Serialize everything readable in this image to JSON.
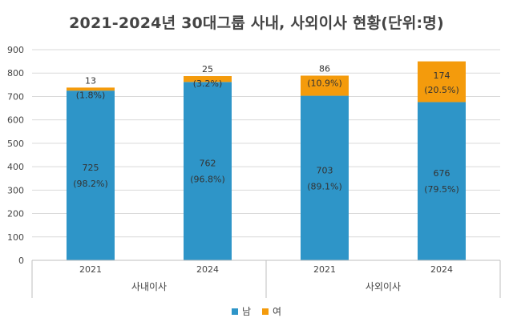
{
  "chart_data": {
    "type": "bar",
    "stacked": true,
    "title": "2021-2024년 30대그룹 사내, 사외이사 현황(단위:명)",
    "groups": [
      "사내이사",
      "사외이사"
    ],
    "categories": [
      "2021",
      "2024",
      "2021",
      "2024"
    ],
    "category_groups": [
      0,
      0,
      1,
      1
    ],
    "series": [
      {
        "name": "남",
        "color": "#2e95c8",
        "values": [
          725,
          762,
          703,
          676
        ],
        "pct_labels": [
          "(98.2%)",
          "(96.8%)",
          "(89.1%)",
          "(79.5%)"
        ]
      },
      {
        "name": "여",
        "color": "#f49b0c",
        "values": [
          13,
          25,
          86,
          174
        ],
        "pct_labels": [
          "(1.8%)",
          "(3.2%)",
          "(10.9%)",
          "(20.5%)"
        ]
      }
    ],
    "ylim": [
      0,
      900
    ],
    "yticks": [
      0,
      100,
      200,
      300,
      400,
      500,
      600,
      700,
      800,
      900
    ],
    "grid": true,
    "legend_position": "bottom"
  }
}
